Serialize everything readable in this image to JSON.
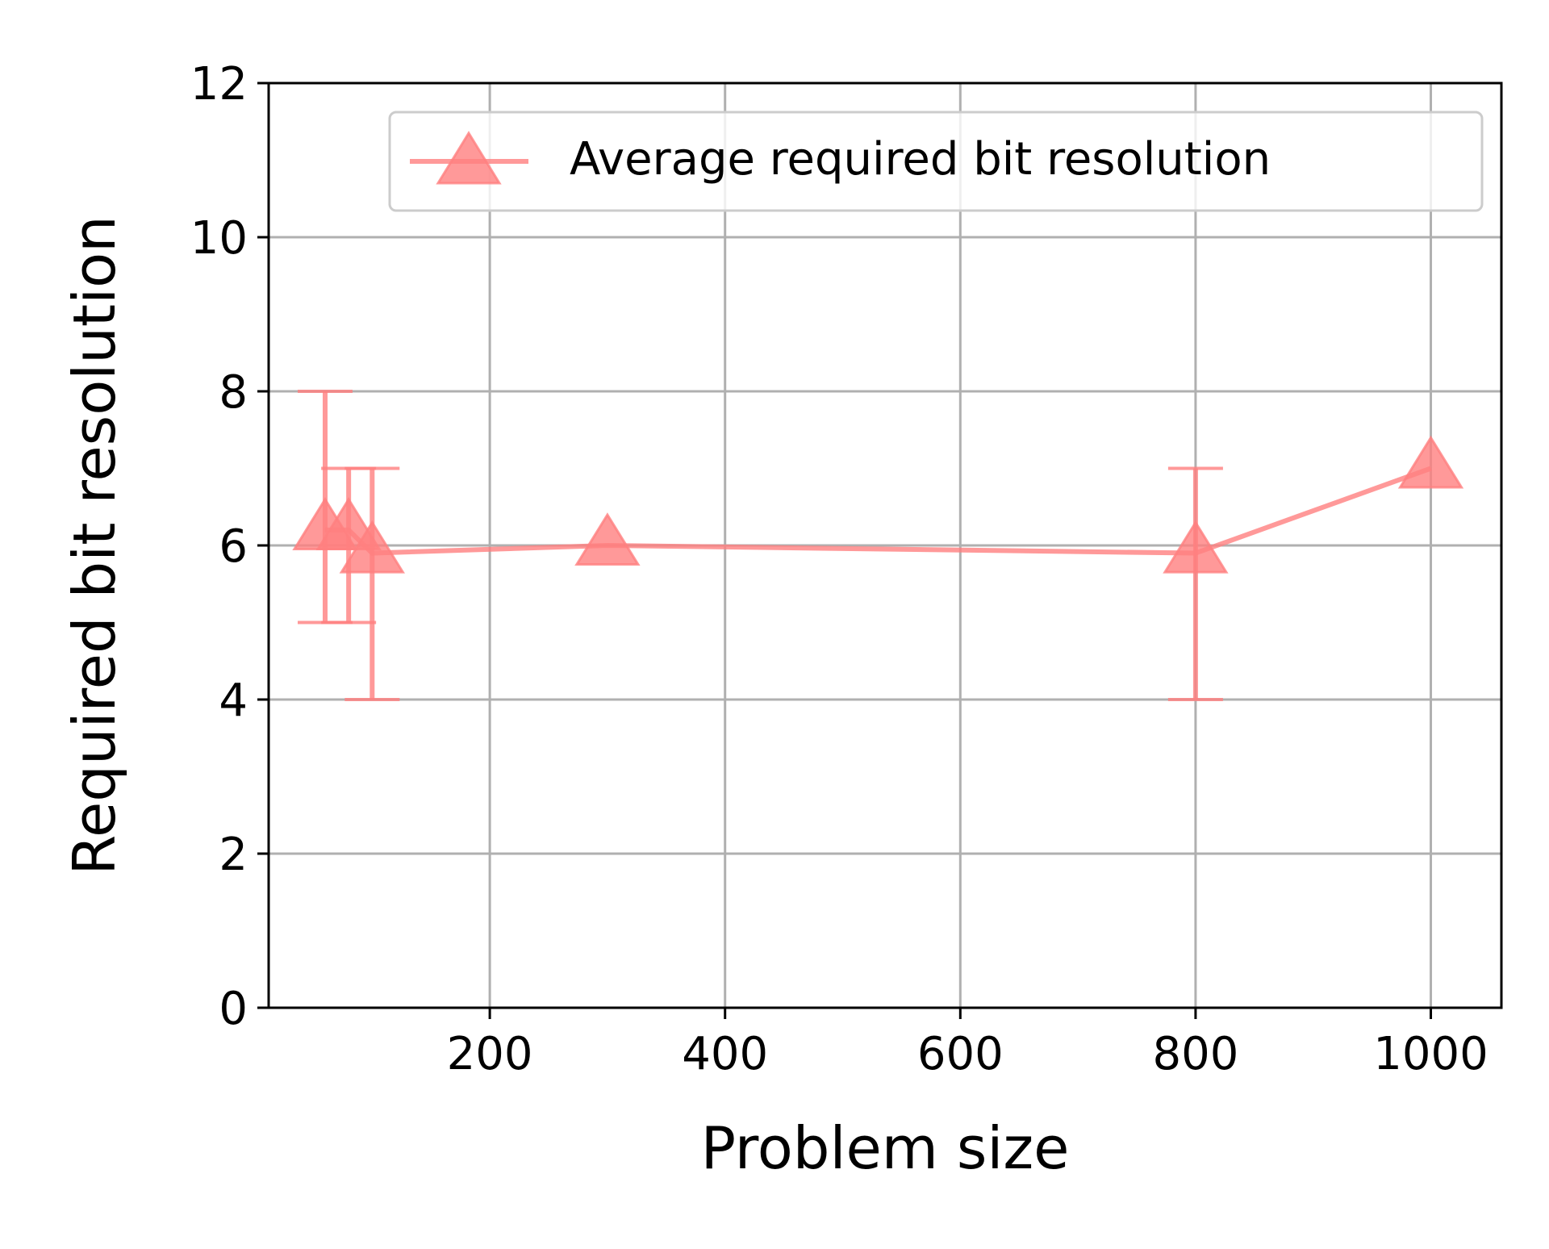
{
  "chart_data": {
    "type": "line",
    "title": "",
    "xlabel": "Problem size",
    "ylabel": "Required bit resolution",
    "xlim": [
      12,
      1060
    ],
    "ylim": [
      0,
      12
    ],
    "xticks": [
      200,
      400,
      600,
      800,
      1000
    ],
    "yticks": [
      0,
      2,
      4,
      6,
      8,
      10,
      12
    ],
    "grid": true,
    "legend": {
      "position": "top-right"
    },
    "colors": {
      "series": "#ff7f7f",
      "grid": "#b0b0b0",
      "axis": "#000000"
    },
    "series": [
      {
        "name": "Average required bit resolution",
        "marker": "triangle-up",
        "x": [
          60,
          80,
          100,
          300,
          800,
          1000
        ],
        "y": [
          6.2,
          6.2,
          5.9,
          6.0,
          5.9,
          7.0
        ],
        "y_err_low": [
          5,
          5,
          4,
          null,
          4,
          null
        ],
        "y_err_high": [
          8,
          7,
          7,
          null,
          7,
          null
        ]
      }
    ]
  }
}
